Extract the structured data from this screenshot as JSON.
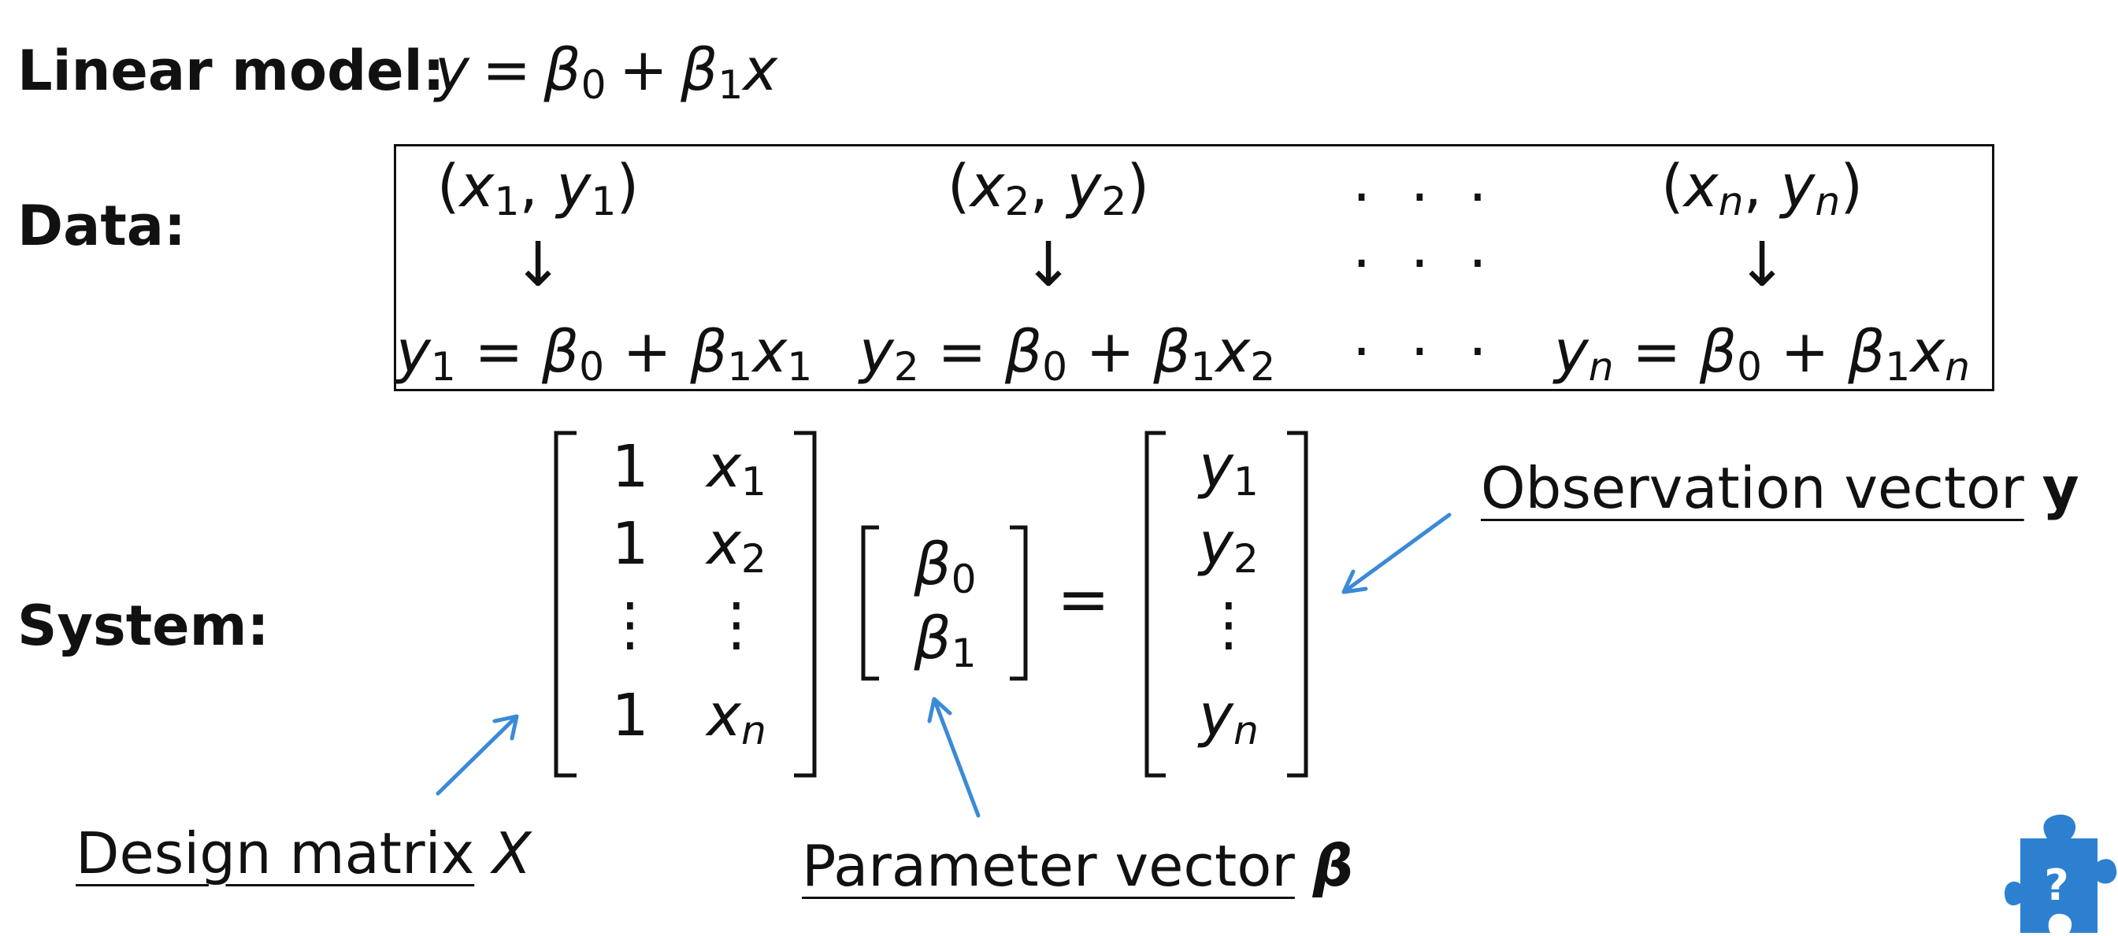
{
  "labels": {
    "linear_model": "Linear model:",
    "data": "Data:",
    "system": "System:"
  },
  "linear_model_eq": {
    "lhs": "y",
    "eq": "=",
    "beta": "β",
    "sub0": "0",
    "plus": "+",
    "sub1": "1",
    "x": "x"
  },
  "data_table": {
    "columns": [
      {
        "pair_x": "x",
        "pair_y": "y",
        "sub": "1"
      },
      {
        "pair_x": "x",
        "pair_y": "y",
        "sub": "2"
      },
      {
        "pair_x": "x",
        "pair_y": "y",
        "sub": "n"
      }
    ],
    "ellipsis": "· · ·",
    "arrow": "↓"
  },
  "system": {
    "design_rows": [
      {
        "one": "1",
        "x": "x",
        "sub": "1"
      },
      {
        "one": "1",
        "x": "x",
        "sub": "2"
      },
      {
        "one": "⋮",
        "x": "⋮",
        "sub": ""
      },
      {
        "one": "1",
        "x": "x",
        "sub": "n"
      }
    ],
    "param_rows": [
      {
        "sym": "β",
        "sub": "0"
      },
      {
        "sym": "β",
        "sub": "1"
      }
    ],
    "obs_rows": [
      {
        "sym": "y",
        "sub": "1"
      },
      {
        "sym": "y",
        "sub": "2"
      },
      {
        "sym": "⋮",
        "sub": ""
      },
      {
        "sym": "y",
        "sub": "n"
      }
    ],
    "equals": "="
  },
  "annotations": {
    "design": {
      "text": "Design matrix",
      "symbol": "X"
    },
    "parameter": {
      "text": "Parameter vector",
      "symbol": "β"
    },
    "observation": {
      "text": "Observation vector",
      "symbol": "y"
    }
  },
  "colors": {
    "arrow": "#3a8ad8",
    "puzzle": "#2d80d0",
    "text": "#111111"
  },
  "icons": {
    "puzzle": "puzzle-question-icon",
    "puzzle_mark": "?"
  }
}
